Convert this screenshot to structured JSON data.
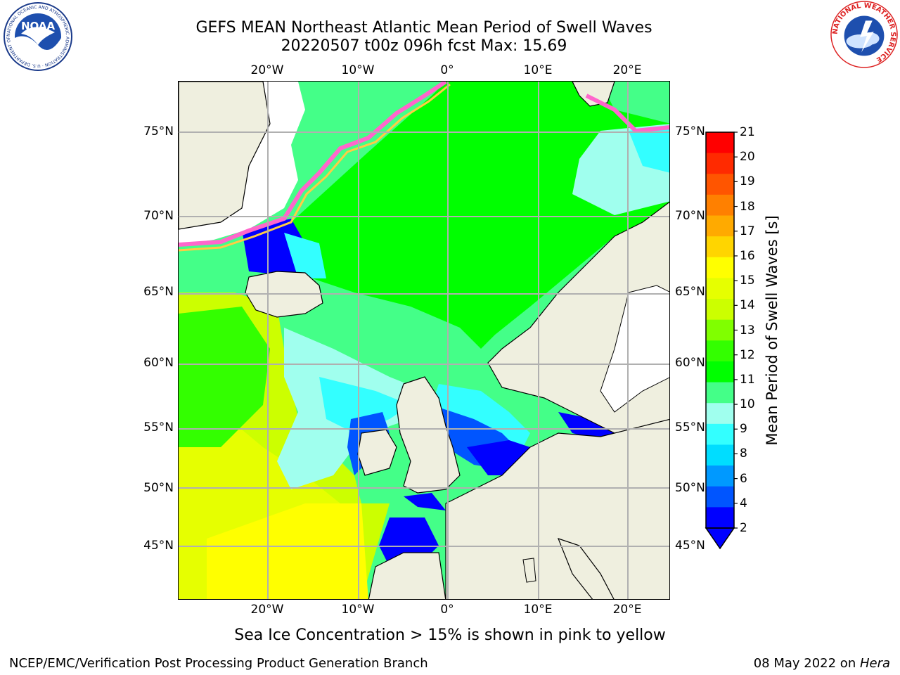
{
  "title": {
    "line1": "GEFS MEAN Northeast Atlantic Mean Period of Swell Waves",
    "line2": "20220507 t00z 096h fcst   Max: 15.69"
  },
  "map": {
    "lon_labels": [
      "20°W",
      "10°W",
      "0°",
      "10°E",
      "20°E"
    ],
    "lat_labels": [
      "75°N",
      "70°N",
      "65°N",
      "60°N",
      "55°N",
      "50°N",
      "45°N"
    ],
    "colors": {
      "land": "#efefdf",
      "ice_edge": "#ff66cc",
      "grid": "#b0b0b0"
    }
  },
  "colorbar": {
    "label": "Mean Period of Swell Waves [s]",
    "ticks": [
      "21",
      "20",
      "19",
      "18",
      "17",
      "16",
      "15",
      "14",
      "13",
      "12",
      "11",
      "10",
      "9",
      "8",
      "6",
      "4",
      "2"
    ],
    "colors": [
      "#ff0000",
      "#ff2a00",
      "#ff5500",
      "#ff8000",
      "#ffaa00",
      "#ffd500",
      "#ffff00",
      "#e6ff00",
      "#ccff00",
      "#80ff00",
      "#33ff00",
      "#00ff00",
      "#44ff88",
      "#a0ffee",
      "#33ffff",
      "#00ddff",
      "#0099ff",
      "#0055ff",
      "#0000ff"
    ]
  },
  "ice_note": "Sea Ice Concentration > 15% is shown in pink to yellow",
  "footer": {
    "left": "NCEP/EMC/Verification Post Processing Product Generation Branch",
    "date": "08 May 2022 on ",
    "machine": "Hera"
  },
  "logos": {
    "noaa_text": "NOAA",
    "noaa_ring": "NATIONAL OCEANIC AND ATMOSPHERIC ADMINISTRATION · U.S. DEPARTMENT OF COMMERCE",
    "nws_ring": "NATIONAL WEATHER SERVICE"
  }
}
